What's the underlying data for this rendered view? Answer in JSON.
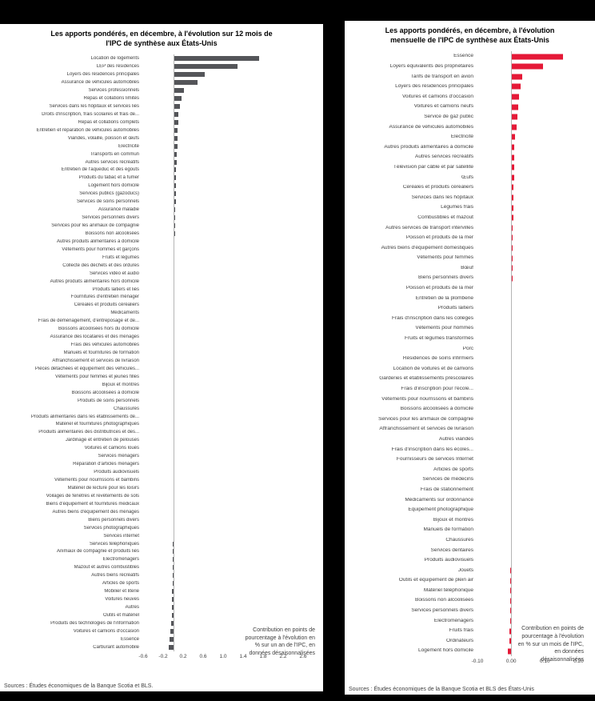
{
  "page": {
    "background": "#000000",
    "panel_background": "#ffffff"
  },
  "chart_data": [
    {
      "type": "bar",
      "orientation": "horizontal",
      "title": "Les apports pondérés, en décembre, à l'évolution sur 12 mois de l'IPC de synthèse aux États-Unis",
      "title_lines": [
        "Les apports pondérés, en décembre, à l'évolution sur 12 mois de",
        "l'IPC de synthèse aux États-Unis"
      ],
      "bar_color": "#545559",
      "xlabel": "",
      "ylabel": "",
      "xlim": [
        -0.6,
        2.6
      ],
      "xticks": [
        -0.6,
        -0.2,
        0.2,
        0.6,
        1.0,
        1.4,
        1.8,
        2.2,
        2.6
      ],
      "xtick_labels": [
        "-0.6",
        "-0.2",
        "0.2",
        "0.6",
        "1.0",
        "1.4",
        "1.8",
        "2.2",
        "2.6"
      ],
      "annotation": "Contribution en points de pourcentage à l'évolution en % sur un an de l'IPC, en données désaisonnalisées",
      "annotation_lines": [
        "Contribution en points de",
        "pourcentage à l'évolution en",
        "% sur un an de l'IPC, en",
        "données désaisonnalisées"
      ],
      "source": "Sources : Études économiques de la Banque Scotia et BLS.",
      "categories": [
        "Location de logements",
        "LEP des résidences",
        "Loyers des résidences principales",
        "Assurance de véhicules automobiles",
        "Services professionnels",
        "Repas et collations limités",
        "Services dans les hôpitaux et services liés",
        "Droits d'inscription, frais scolaires et frais de...",
        "Repas et collations complets",
        "Entretien et réparation de véhicules automobiles",
        "Viandes, volaille, poisson et œufs",
        "Électricité",
        "Transports en commun",
        "Autres services récréatifs",
        "Entretien de l'aqueduc et des égouts",
        "Produits du tabac et à fumer",
        "Logement hors domicile",
        "Services publics (gazoducs)",
        "Services de soins personnels",
        "Assurance maladie",
        "Services personnels divers",
        "Services pour les animaux de compagnie",
        "Boissons non alcoolisées",
        "Autres produits alimentaires à domicile",
        "Vêtements pour hommes et garçons",
        "Fruits et légumes",
        "Collecte des déchets et des ordures",
        "Services vidéo et audio",
        "Autres produits alimentaires hors domicile",
        "Produits laitiers et liés",
        "Fournitures d'entretien ménager",
        "Céréales et produits céréaliers",
        "Médicaments",
        "Frais de déménagement, d'entreposage et de...",
        "Boissons alcoolisées hors du domicile",
        "Assurance des locataires et des ménages",
        "Frais des véhicules automobiles",
        "Manuels et fournitures de formation",
        "Affranchissement et services de livraison",
        "Pièces détachées et équipement des véhicules...",
        "Vêtements pour femmes et jeunes filles",
        "Bijoux et montres",
        "Boissons alcoolisées à domicile",
        "Produits de soins personnels",
        "Chaussures",
        "Produits alimentaires dans les établissements de...",
        "Matériel et fournitures photographiques",
        "Produits alimentaires des distributrices et des...",
        "Jardinage et entretien de pelouses",
        "Voitures et camions loués",
        "Services ménagers",
        "Réparation d'articles ménagers",
        "Produits audiovisuels",
        "Vêtements pour nourrissons et bambins",
        "Matériel de lecture pour les loisirs",
        "Voilages de fenêtres et revêtements de sols",
        "Biens d'équipement et fournitures médicaux",
        "Autres biens d'équipement des ménages",
        "Biens personnels divers",
        "Services photographiques",
        "Services internet",
        "Services téléphoniques",
        "Animaux de compagnie et produits liés",
        "Électroménagers",
        "Mazout et autres combustibles",
        "Autres biens récréatifs",
        "Articles de sports",
        "Mobilier et literie",
        "Voitures neuves",
        "Autres",
        "Outils et matériel",
        "Produits des technologies de l'information",
        "Voitures et camions d'occasion",
        "Essence",
        "Carburant automobile"
      ],
      "values": [
        1.72,
        1.28,
        0.63,
        0.49,
        0.22,
        0.17,
        0.13,
        0.11,
        0.1,
        0.09,
        0.08,
        0.08,
        0.07,
        0.07,
        0.06,
        0.06,
        0.05,
        0.05,
        0.05,
        0.04,
        0.04,
        0.04,
        0.04,
        0.03,
        0.03,
        0.03,
        0.03,
        0.03,
        0.03,
        0.02,
        0.02,
        0.02,
        0.02,
        0.02,
        0.02,
        0.02,
        0.02,
        0.01,
        0.01,
        0.01,
        0.01,
        0.01,
        0.01,
        0.01,
        0.01,
        0.01,
        0.01,
        0.01,
        0.01,
        0.01,
        0.0,
        0.0,
        0.0,
        0.0,
        0.0,
        0.0,
        0.0,
        0.0,
        0.0,
        0.0,
        0.0,
        -0.01,
        -0.01,
        -0.01,
        -0.01,
        -0.01,
        -0.01,
        -0.02,
        -0.02,
        -0.02,
        -0.03,
        -0.04,
        -0.06,
        -0.07,
        -0.09
      ]
    },
    {
      "type": "bar",
      "orientation": "horizontal",
      "title": "Les apports pondérés, en décembre, à l'évolution mensuelle de l'IPC de synthèse aux États-Unis",
      "title_lines": [
        "Les apports pondérés, en décembre, à l'évolution",
        "mensuelle de l'IPC de synthèse aux États-Unis"
      ],
      "bar_color": "#e51937",
      "xlabel": "",
      "ylabel": "",
      "xlim": [
        -0.1,
        0.225
      ],
      "xticks": [
        -0.1,
        0.0,
        0.1,
        0.2
      ],
      "xtick_labels": [
        "-0.10",
        "0.00",
        "0.10",
        "0.20"
      ],
      "annotation": "Contribution en points de pourcentage à l'évolution en % sur un mois de l'IPC, en données désaisonnalisées",
      "annotation_lines": [
        "Contribution en points de",
        "pourcentage à l'évolution",
        "en % sur un mois de l'IPC,",
        "en données",
        "désaisonnalisées"
      ],
      "source": "Sources : Études économiques de la Banque Scotia et BLS des États-Unis",
      "categories": [
        "Essence",
        "Loyers équivalents des propriétaires",
        "Tarifs de transport en avion",
        "Loyers des résidences principales",
        "Voitures et camions d'occasion",
        "Voitures et camions neufs",
        "Service de gaz public",
        "Assurance de véhicules automobiles",
        "Électricité",
        "Autres produits alimentaires à domicile",
        "Autres services récréatifs",
        "Télévision par câble et par satellite",
        "Œufs",
        "Céréales et produits céréaliers",
        "Services dans les hôpitaux",
        "Légumes frais",
        "Combustibles et mazout",
        "Autres services de transport intervilles",
        "Poisson et produits de la mer",
        "Autres biens d'équipement domestiques",
        "Vêtements pour femmes",
        "Bœuf",
        "Biens personnels divers",
        "Poisson et produits de la mer",
        "Entretien de la plomberie",
        "Produits laitiers",
        "Frais d'inscription dans les collèges",
        "Vêtements pour hommes",
        "Fruits et légumes transformés",
        "Porc",
        "Résidences de soins infirmiers",
        "Location de voitures et de camions",
        "Garderies et établissements préscolaires",
        "Frais d'inscription pour l'école...",
        "Vêtements pour nourrissons et bambins",
        "Boissons alcoolisées à domicile",
        "Services pour les animaux de compagnie",
        "Affranchissement et services de livraison",
        "Autres viandes",
        "Frais d'inscription dans les écoles...",
        "Fournisseurs de services Internet",
        "Articles de sports",
        "Services de médecins",
        "Frais de stationnement",
        "Médicaments sur ordonnance",
        "Équipement photographique",
        "Bijoux et montres",
        "Manuels de formation",
        "Chaussures",
        "Services dentaires",
        "Produits audiovisuels",
        "Jouets",
        "Outils et équipement de plein air",
        "Matériel téléphonique",
        "Boissons non alcoolisées",
        "Services personnels divers",
        "Électroménagers",
        "Fruits frais",
        "Ordinateurs",
        "Logement hors domicile"
      ],
      "values": [
        0.155,
        0.095,
        0.032,
        0.027,
        0.024,
        0.021,
        0.019,
        0.017,
        0.012,
        0.01,
        0.009,
        0.008,
        0.008,
        0.007,
        0.007,
        0.006,
        0.006,
        0.005,
        0.005,
        0.005,
        0.004,
        0.004,
        0.004,
        0.003,
        0.003,
        0.003,
        0.003,
        0.003,
        0.002,
        0.002,
        0.002,
        0.002,
        0.002,
        0.002,
        0.001,
        0.001,
        0.001,
        0.001,
        0.001,
        0.001,
        0.001,
        0.0,
        0.0,
        0.0,
        0.0,
        0.0,
        -0.001,
        -0.001,
        -0.001,
        -0.001,
        -0.001,
        -0.002,
        -0.002,
        -0.002,
        -0.002,
        -0.003,
        -0.003,
        -0.004,
        -0.005,
        -0.009
      ]
    }
  ]
}
